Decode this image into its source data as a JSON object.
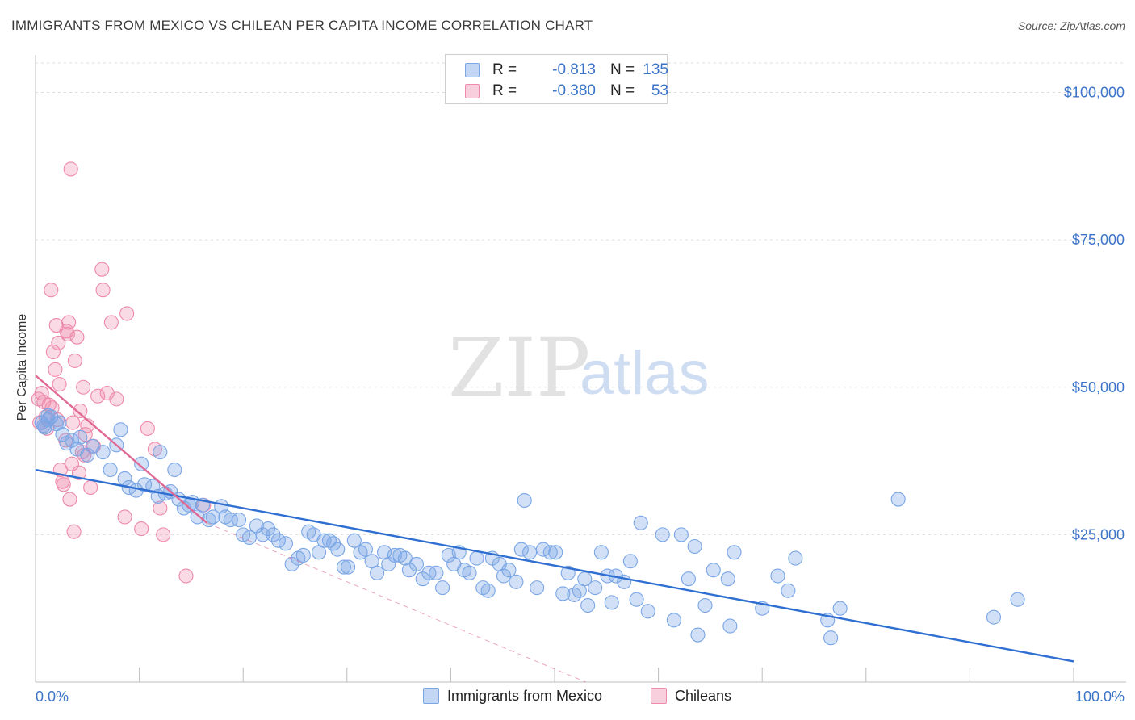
{
  "title": "IMMIGRANTS FROM MEXICO VS CHILEAN PER CAPITA INCOME CORRELATION CHART",
  "source": "Source: ZipAtlas.com",
  "watermark": {
    "zip": "ZIP",
    "atlas": "atlas"
  },
  "colors": {
    "blue": "#7aa6e6",
    "blue_fill": "rgba(122,166,230,0.35)",
    "blue_line": "#2e6fd1",
    "pink": "#ee89aa",
    "pink_fill": "rgba(238,137,170,0.30)",
    "pink_line": "#e06a95",
    "grid": "#dcdcdc",
    "axis_text": "#3b73c8"
  },
  "legend": {
    "rows": [
      {
        "r_label": "R =",
        "r_value": "-0.813",
        "n_label": "N =",
        "n_value": "135",
        "swatch": "blue"
      },
      {
        "r_label": "R =",
        "r_value": "-0.380",
        "n_label": "N =",
        "n_value": "53",
        "swatch": "pink"
      }
    ]
  },
  "bottom_legend": [
    {
      "label": "Immigrants from Mexico",
      "swatch": "blue"
    },
    {
      "label": "Chileans",
      "swatch": "pink"
    }
  ],
  "chart_data": {
    "type": "scatter",
    "title": "IMMIGRANTS FROM MEXICO VS CHILEAN PER CAPITA INCOME CORRELATION CHART",
    "xlabel": "",
    "ylabel": "Per Capita Income",
    "xlim": [
      0,
      100
    ],
    "ylim": [
      0,
      105000
    ],
    "x_tick_labels": [
      "0.0%",
      "100.0%"
    ],
    "y_ticks": [
      25000,
      50000,
      75000,
      100000
    ],
    "y_tick_labels": [
      "$25,000",
      "$50,000",
      "$75,000",
      "$100,000"
    ],
    "grid": true,
    "legend_position": "top-center",
    "series": [
      {
        "name": "Immigrants from Mexico",
        "color": "blue",
        "points": [
          [
            0.6,
            44000
          ],
          [
            0.8,
            43500
          ],
          [
            1.2,
            44500
          ],
          [
            1.5,
            45000
          ],
          [
            2.0,
            43800
          ],
          [
            2.6,
            42000
          ],
          [
            3.0,
            40500
          ],
          [
            3.5,
            41000
          ],
          [
            4.0,
            39500
          ],
          [
            4.3,
            41500
          ],
          [
            5.0,
            38500
          ],
          [
            5.5,
            40000
          ],
          [
            6.5,
            39000
          ],
          [
            7.2,
            36000
          ],
          [
            7.8,
            40200
          ],
          [
            8.2,
            42800
          ],
          [
            8.6,
            34500
          ],
          [
            9.0,
            33000
          ],
          [
            9.7,
            32500
          ],
          [
            10.2,
            37000
          ],
          [
            10.5,
            33500
          ],
          [
            11.3,
            33200
          ],
          [
            11.8,
            31500
          ],
          [
            12.0,
            39000
          ],
          [
            12.5,
            32000
          ],
          [
            13.0,
            32300
          ],
          [
            13.4,
            36000
          ],
          [
            13.8,
            31000
          ],
          [
            14.3,
            29500
          ],
          [
            14.8,
            30000
          ],
          [
            15.1,
            30500
          ],
          [
            15.6,
            28000
          ],
          [
            16.1,
            30000
          ],
          [
            16.7,
            27500
          ],
          [
            17.1,
            28000
          ],
          [
            17.9,
            29800
          ],
          [
            18.3,
            28000
          ],
          [
            18.8,
            27500
          ],
          [
            19.6,
            27500
          ],
          [
            20.0,
            25000
          ],
          [
            20.6,
            24500
          ],
          [
            21.3,
            26500
          ],
          [
            21.9,
            25000
          ],
          [
            22.4,
            26000
          ],
          [
            22.9,
            25000
          ],
          [
            23.4,
            24000
          ],
          [
            24.1,
            23500
          ],
          [
            24.7,
            20000
          ],
          [
            25.3,
            21000
          ],
          [
            25.8,
            21500
          ],
          [
            26.3,
            25500
          ],
          [
            26.8,
            25000
          ],
          [
            27.3,
            22000
          ],
          [
            27.8,
            24000
          ],
          [
            28.3,
            24000
          ],
          [
            28.7,
            23500
          ],
          [
            29.1,
            22500
          ],
          [
            29.7,
            19500
          ],
          [
            30.1,
            19500
          ],
          [
            30.7,
            24000
          ],
          [
            31.3,
            22000
          ],
          [
            31.8,
            22500
          ],
          [
            32.4,
            20500
          ],
          [
            32.9,
            18500
          ],
          [
            33.6,
            22000
          ],
          [
            34.0,
            20000
          ],
          [
            34.6,
            21500
          ],
          [
            35.1,
            21500
          ],
          [
            35.6,
            21000
          ],
          [
            36.0,
            19000
          ],
          [
            36.7,
            20000
          ],
          [
            37.3,
            17500
          ],
          [
            37.9,
            18500
          ],
          [
            38.6,
            18500
          ],
          [
            39.2,
            16000
          ],
          [
            39.8,
            21500
          ],
          [
            40.3,
            20000
          ],
          [
            40.8,
            22000
          ],
          [
            41.3,
            19000
          ],
          [
            41.8,
            18500
          ],
          [
            42.5,
            21000
          ],
          [
            43.1,
            16000
          ],
          [
            43.6,
            15500
          ],
          [
            44.0,
            21000
          ],
          [
            44.7,
            20000
          ],
          [
            45.1,
            18000
          ],
          [
            45.6,
            19000
          ],
          [
            46.3,
            17000
          ],
          [
            46.8,
            22500
          ],
          [
            47.1,
            30800
          ],
          [
            47.6,
            22000
          ],
          [
            48.3,
            16000
          ],
          [
            48.9,
            22500
          ],
          [
            49.6,
            22000
          ],
          [
            50.1,
            22000
          ],
          [
            50.8,
            15000
          ],
          [
            51.3,
            18500
          ],
          [
            51.9,
            14800
          ],
          [
            52.4,
            15500
          ],
          [
            52.9,
            17500
          ],
          [
            53.2,
            13000
          ],
          [
            53.9,
            16000
          ],
          [
            54.5,
            22000
          ],
          [
            55.1,
            18000
          ],
          [
            55.5,
            13500
          ],
          [
            55.9,
            18000
          ],
          [
            56.7,
            17000
          ],
          [
            57.3,
            20500
          ],
          [
            57.9,
            14000
          ],
          [
            58.3,
            27000
          ],
          [
            59.0,
            12000
          ],
          [
            60.4,
            25000
          ],
          [
            61.5,
            10500
          ],
          [
            62.2,
            25000
          ],
          [
            62.9,
            17500
          ],
          [
            63.5,
            23000
          ],
          [
            63.8,
            8000
          ],
          [
            64.5,
            13000
          ],
          [
            65.3,
            19000
          ],
          [
            66.7,
            17500
          ],
          [
            66.9,
            9500
          ],
          [
            67.3,
            22000
          ],
          [
            70.0,
            12500
          ],
          [
            71.5,
            18000
          ],
          [
            72.5,
            15500
          ],
          [
            73.2,
            21000
          ],
          [
            76.3,
            10500
          ],
          [
            76.6,
            7500
          ],
          [
            77.5,
            12500
          ],
          [
            83.1,
            31000
          ],
          [
            92.3,
            11000
          ],
          [
            94.6,
            14000
          ],
          [
            1.2,
            45200
          ],
          [
            2.3,
            44000
          ],
          [
            0.9,
            43200
          ]
        ]
      },
      {
        "name": "Chileans",
        "color": "pink",
        "points": [
          [
            0.3,
            48000
          ],
          [
            0.4,
            44000
          ],
          [
            0.6,
            49000
          ],
          [
            0.8,
            47500
          ],
          [
            1.0,
            45000
          ],
          [
            1.1,
            43000
          ],
          [
            1.3,
            47000
          ],
          [
            1.5,
            66500
          ],
          [
            1.6,
            46500
          ],
          [
            1.7,
            56000
          ],
          [
            1.9,
            53000
          ],
          [
            2.0,
            60500
          ],
          [
            2.1,
            44500
          ],
          [
            2.2,
            57500
          ],
          [
            2.3,
            50500
          ],
          [
            2.4,
            36000
          ],
          [
            2.6,
            34000
          ],
          [
            2.7,
            33500
          ],
          [
            2.9,
            41000
          ],
          [
            3.0,
            59500
          ],
          [
            3.1,
            59000
          ],
          [
            3.2,
            61000
          ],
          [
            3.3,
            31000
          ],
          [
            3.4,
            87000
          ],
          [
            3.5,
            37000
          ],
          [
            3.6,
            44000
          ],
          [
            3.7,
            25500
          ],
          [
            3.8,
            54500
          ],
          [
            4.0,
            58500
          ],
          [
            4.2,
            35500
          ],
          [
            4.3,
            46000
          ],
          [
            4.5,
            39000
          ],
          [
            4.6,
            50000
          ],
          [
            4.8,
            42000
          ],
          [
            5.0,
            43500
          ],
          [
            5.3,
            33000
          ],
          [
            5.6,
            40000
          ],
          [
            6.0,
            48500
          ],
          [
            6.4,
            70000
          ],
          [
            6.5,
            66500
          ],
          [
            6.9,
            49000
          ],
          [
            7.3,
            61000
          ],
          [
            7.8,
            48000
          ],
          [
            8.6,
            28000
          ],
          [
            8.8,
            62500
          ],
          [
            10.2,
            26000
          ],
          [
            10.8,
            43000
          ],
          [
            11.5,
            39500
          ],
          [
            12.0,
            29500
          ],
          [
            12.3,
            25000
          ],
          [
            14.5,
            18000
          ],
          [
            16.2,
            30000
          ],
          [
            4.7,
            38500
          ]
        ]
      }
    ],
    "trend_lines": [
      {
        "series": "Immigrants from Mexico",
        "x": [
          0,
          100
        ],
        "y": [
          36000,
          3500
        ],
        "style": "solid"
      },
      {
        "series": "Chileans",
        "x": [
          0,
          16.5
        ],
        "y": [
          52000,
          27000
        ],
        "style": "solid"
      },
      {
        "series": "Chileans",
        "x": [
          16.5,
          53
        ],
        "y": [
          27000,
          0
        ],
        "style": "dashed"
      }
    ]
  }
}
